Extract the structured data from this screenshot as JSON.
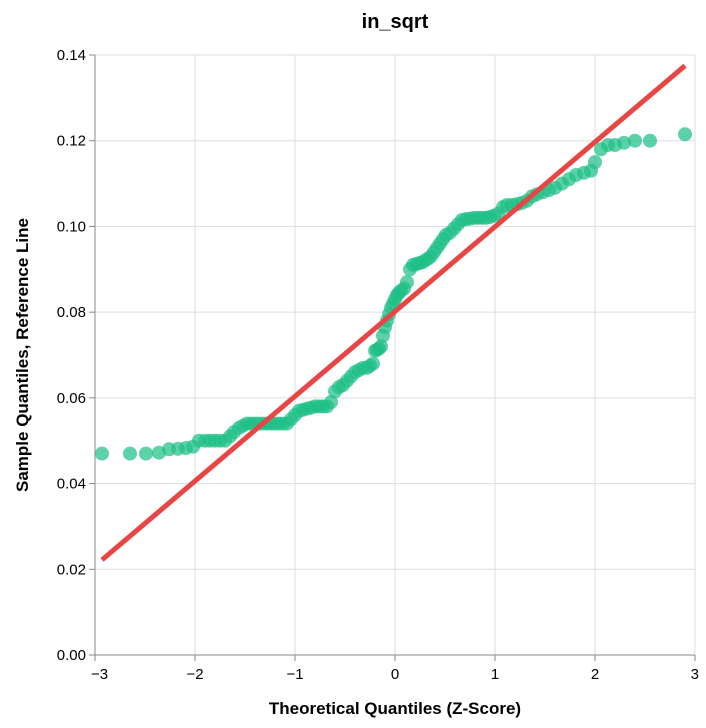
{
  "chart_data": {
    "type": "scatter",
    "title": "in_sqrt",
    "xlabel": "Theoretical Quantiles (Z-Score)",
    "ylabel": "Sample Quantiles, Reference Line",
    "xlim": [
      -3,
      3
    ],
    "ylim": [
      0,
      0.14
    ],
    "x_ticks": [
      -3,
      -2,
      -1,
      0,
      1,
      2,
      3
    ],
    "x_tick_labels": [
      "−3",
      "−2",
      "−1",
      "0",
      "1",
      "2",
      "3"
    ],
    "y_ticks": [
      0,
      0.02,
      0.04,
      0.06,
      0.08,
      0.1,
      0.12,
      0.14
    ],
    "y_tick_labels": [
      "0.00",
      "0.02",
      "0.04",
      "0.06",
      "0.08",
      "0.10",
      "0.12",
      "0.14"
    ],
    "grid": true,
    "colors": {
      "points": "#1fbf87",
      "reference_line": "#e84545"
    },
    "reference_line": {
      "x": [
        -2.93,
        2.9
      ],
      "y": [
        0.0222,
        0.1375
      ]
    },
    "points": [
      [
        -2.93,
        0.047
      ],
      [
        -2.65,
        0.047
      ],
      [
        -2.49,
        0.047
      ],
      [
        -2.36,
        0.0472
      ],
      [
        -2.26,
        0.048
      ],
      [
        -2.17,
        0.0481
      ],
      [
        -2.09,
        0.0483
      ],
      [
        -2.02,
        0.0486
      ],
      [
        -1.96,
        0.05
      ],
      [
        -1.9,
        0.05
      ],
      [
        -1.85,
        0.05
      ],
      [
        -1.8,
        0.05
      ],
      [
        -1.75,
        0.05
      ],
      [
        -1.7,
        0.05
      ],
      [
        -1.65,
        0.051
      ],
      [
        -1.61,
        0.052
      ],
      [
        -1.56,
        0.053
      ],
      [
        -1.52,
        0.0535
      ],
      [
        -1.48,
        0.054
      ],
      [
        -1.44,
        0.054
      ],
      [
        -1.4,
        0.054
      ],
      [
        -1.36,
        0.054
      ],
      [
        -1.32,
        0.054
      ],
      [
        -1.28,
        0.054
      ],
      [
        -1.24,
        0.054
      ],
      [
        -1.2,
        0.054
      ],
      [
        -1.16,
        0.054
      ],
      [
        -1.12,
        0.054
      ],
      [
        -1.08,
        0.054
      ],
      [
        -1.04,
        0.055
      ],
      [
        -1.0,
        0.056
      ],
      [
        -0.96,
        0.057
      ],
      [
        -0.92,
        0.0572
      ],
      [
        -0.88,
        0.0575
      ],
      [
        -0.84,
        0.0577
      ],
      [
        -0.8,
        0.058
      ],
      [
        -0.76,
        0.058
      ],
      [
        -0.72,
        0.058
      ],
      [
        -0.68,
        0.058
      ],
      [
        -0.64,
        0.059
      ],
      [
        -0.6,
        0.0615
      ],
      [
        -0.56,
        0.0625
      ],
      [
        -0.52,
        0.063
      ],
      [
        -0.48,
        0.064
      ],
      [
        -0.44,
        0.065
      ],
      [
        -0.4,
        0.066
      ],
      [
        -0.36,
        0.0665
      ],
      [
        -0.32,
        0.067
      ],
      [
        -0.28,
        0.067
      ],
      [
        -0.25,
        0.0675
      ],
      [
        -0.22,
        0.068
      ],
      [
        -0.2,
        0.071
      ],
      [
        -0.18,
        0.0712
      ],
      [
        -0.16,
        0.0715
      ],
      [
        -0.14,
        0.072
      ],
      [
        -0.12,
        0.0745
      ],
      [
        -0.1,
        0.0765
      ],
      [
        -0.08,
        0.078
      ],
      [
        -0.06,
        0.0795
      ],
      [
        -0.04,
        0.081
      ],
      [
        -0.02,
        0.082
      ],
      [
        0.0,
        0.083
      ],
      [
        0.02,
        0.084
      ],
      [
        0.04,
        0.0845
      ],
      [
        0.06,
        0.085
      ],
      [
        0.09,
        0.0855
      ],
      [
        0.12,
        0.087
      ],
      [
        0.15,
        0.09
      ],
      [
        0.18,
        0.091
      ],
      [
        0.21,
        0.0912
      ],
      [
        0.24,
        0.0914
      ],
      [
        0.27,
        0.0916
      ],
      [
        0.3,
        0.092
      ],
      [
        0.33,
        0.0925
      ],
      [
        0.36,
        0.093
      ],
      [
        0.39,
        0.094
      ],
      [
        0.42,
        0.095
      ],
      [
        0.45,
        0.096
      ],
      [
        0.48,
        0.097
      ],
      [
        0.51,
        0.098
      ],
      [
        0.55,
        0.0985
      ],
      [
        0.59,
        0.0995
      ],
      [
        0.63,
        0.1005
      ],
      [
        0.67,
        0.1015
      ],
      [
        0.71,
        0.1017
      ],
      [
        0.75,
        0.1018
      ],
      [
        0.79,
        0.102
      ],
      [
        0.83,
        0.102
      ],
      [
        0.87,
        0.102
      ],
      [
        0.91,
        0.102
      ],
      [
        0.95,
        0.1022
      ],
      [
        0.99,
        0.1025
      ],
      [
        1.03,
        0.103
      ],
      [
        1.08,
        0.1045
      ],
      [
        1.12,
        0.105
      ],
      [
        1.17,
        0.105
      ],
      [
        1.22,
        0.1052
      ],
      [
        1.27,
        0.1055
      ],
      [
        1.32,
        0.106
      ],
      [
        1.37,
        0.107
      ],
      [
        1.42,
        0.1075
      ],
      [
        1.48,
        0.108
      ],
      [
        1.54,
        0.1085
      ],
      [
        1.6,
        0.109
      ],
      [
        1.67,
        0.11
      ],
      [
        1.74,
        0.111
      ],
      [
        1.81,
        0.112
      ],
      [
        1.89,
        0.1125
      ],
      [
        1.96,
        0.113
      ],
      [
        2.0,
        0.115
      ],
      [
        2.06,
        0.118
      ],
      [
        2.13,
        0.119
      ],
      [
        2.2,
        0.119
      ],
      [
        2.29,
        0.1195
      ],
      [
        2.4,
        0.12
      ],
      [
        2.55,
        0.12
      ],
      [
        2.9,
        0.1215
      ]
    ]
  }
}
